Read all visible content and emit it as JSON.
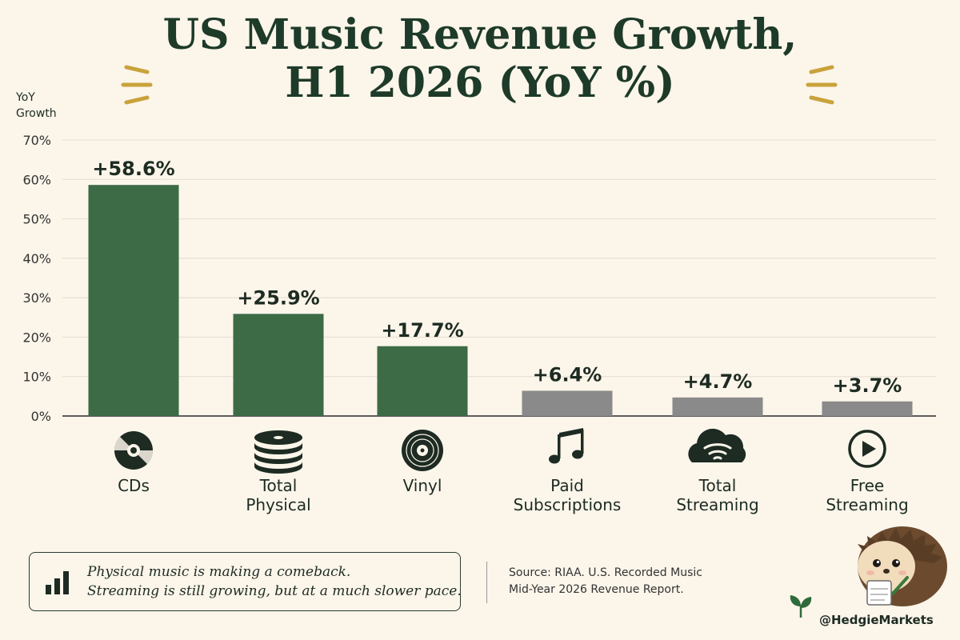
{
  "chart_data": {
    "type": "bar",
    "title": "US Music Revenue Growth, H1 2026 (YoY %)",
    "title_lines": [
      "US Music Revenue Growth,",
      "H1 2026 (YoY %)"
    ],
    "ylabel": "YoY Growth",
    "ylabel_lines": [
      "YoY",
      "Growth"
    ],
    "ylim": [
      0,
      70
    ],
    "yticks": [
      "0%",
      "10%",
      "20%",
      "30%",
      "40%",
      "50%",
      "60%",
      "70%"
    ],
    "ytick_values": [
      0,
      10,
      20,
      30,
      40,
      50,
      60,
      70
    ],
    "grid": true,
    "categories": [
      "CDs",
      "Total Physical",
      "Vinyl",
      "Paid Subscriptions",
      "Total Streaming",
      "Free Streaming"
    ],
    "category_lines": [
      [
        "CDs"
      ],
      [
        "Total",
        "Physical"
      ],
      [
        "Vinyl"
      ],
      [
        "Paid",
        "Subscriptions"
      ],
      [
        "Total",
        "Streaming"
      ],
      [
        "Free",
        "Streaming"
      ]
    ],
    "values": [
      58.6,
      25.9,
      17.7,
      6.4,
      4.7,
      3.7
    ],
    "data_labels": [
      "+58.6%",
      "+25.9%",
      "+17.7%",
      "+6.4%",
      "+4.7%",
      "+3.7%"
    ],
    "bar_colors": [
      "#3c6b46",
      "#3c6b46",
      "#3c6b46",
      "#8a8a8a",
      "#8a8a8a",
      "#8a8a8a"
    ],
    "icons": [
      "cd-icon",
      "disc-stack-icon",
      "vinyl-icon",
      "music-note-icon",
      "cloud-stream-icon",
      "play-icon"
    ]
  },
  "note": {
    "lines": [
      "Physical music is making a comeback.",
      "Streaming is still growing, but at a much slower pace."
    ],
    "icon": "bar-chart-icon"
  },
  "source": {
    "lines": [
      "Source: RIAA. U.S. Recorded Music",
      "Mid-Year 2026 Revenue Report."
    ]
  },
  "handle": "@HedgieMarkets",
  "colors": {
    "background": "#fbf5ea",
    "title": "#1e3a29",
    "physical_bar": "#3c6b46",
    "streaming_bar": "#8a8a8a",
    "accent": "#c9a23a"
  }
}
